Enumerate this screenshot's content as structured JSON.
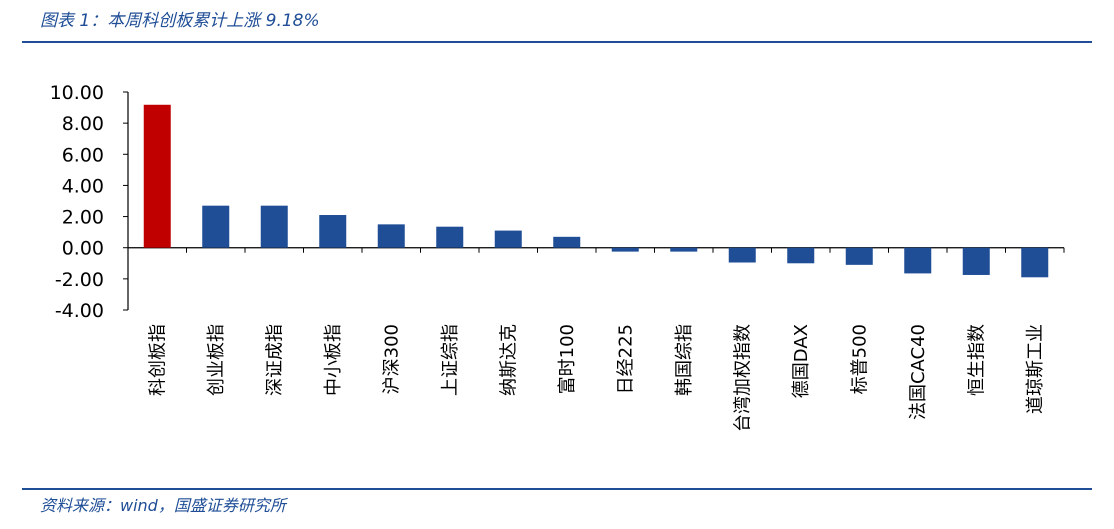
{
  "header": {
    "title": "图表 1：本周科创板累计上涨 9.18%"
  },
  "footer": {
    "source": "资料来源：wind，国盛证券研究所"
  },
  "colors": {
    "accent": "#1f4e96",
    "bar_default": "#1f4e96",
    "bar_highlight": "#c00000"
  },
  "chart_data": {
    "type": "bar",
    "categories": [
      "科创板指",
      "创业板指",
      "深证成指",
      "中小板指",
      "沪深300",
      "上证综指",
      "纳斯达克",
      "富时100",
      "日经225",
      "韩国综指",
      "台湾加权指数",
      "德国DAX",
      "标普500",
      "法国CAC40",
      "恒生指数",
      "道琼斯工业"
    ],
    "values": [
      9.18,
      2.7,
      2.7,
      2.1,
      1.5,
      1.35,
      1.1,
      0.7,
      -0.25,
      -0.25,
      -0.95,
      -1.0,
      -1.1,
      -1.65,
      -1.75,
      -1.9
    ],
    "highlight_index": 0,
    "ylim": [
      -4,
      10
    ],
    "yticks": [
      "10.00",
      "8.00",
      "6.00",
      "4.00",
      "2.00",
      "0.00",
      "-2.00",
      "-4.00"
    ],
    "title": "",
    "xlabel": "",
    "ylabel": "",
    "grid": false,
    "legend": "none"
  }
}
